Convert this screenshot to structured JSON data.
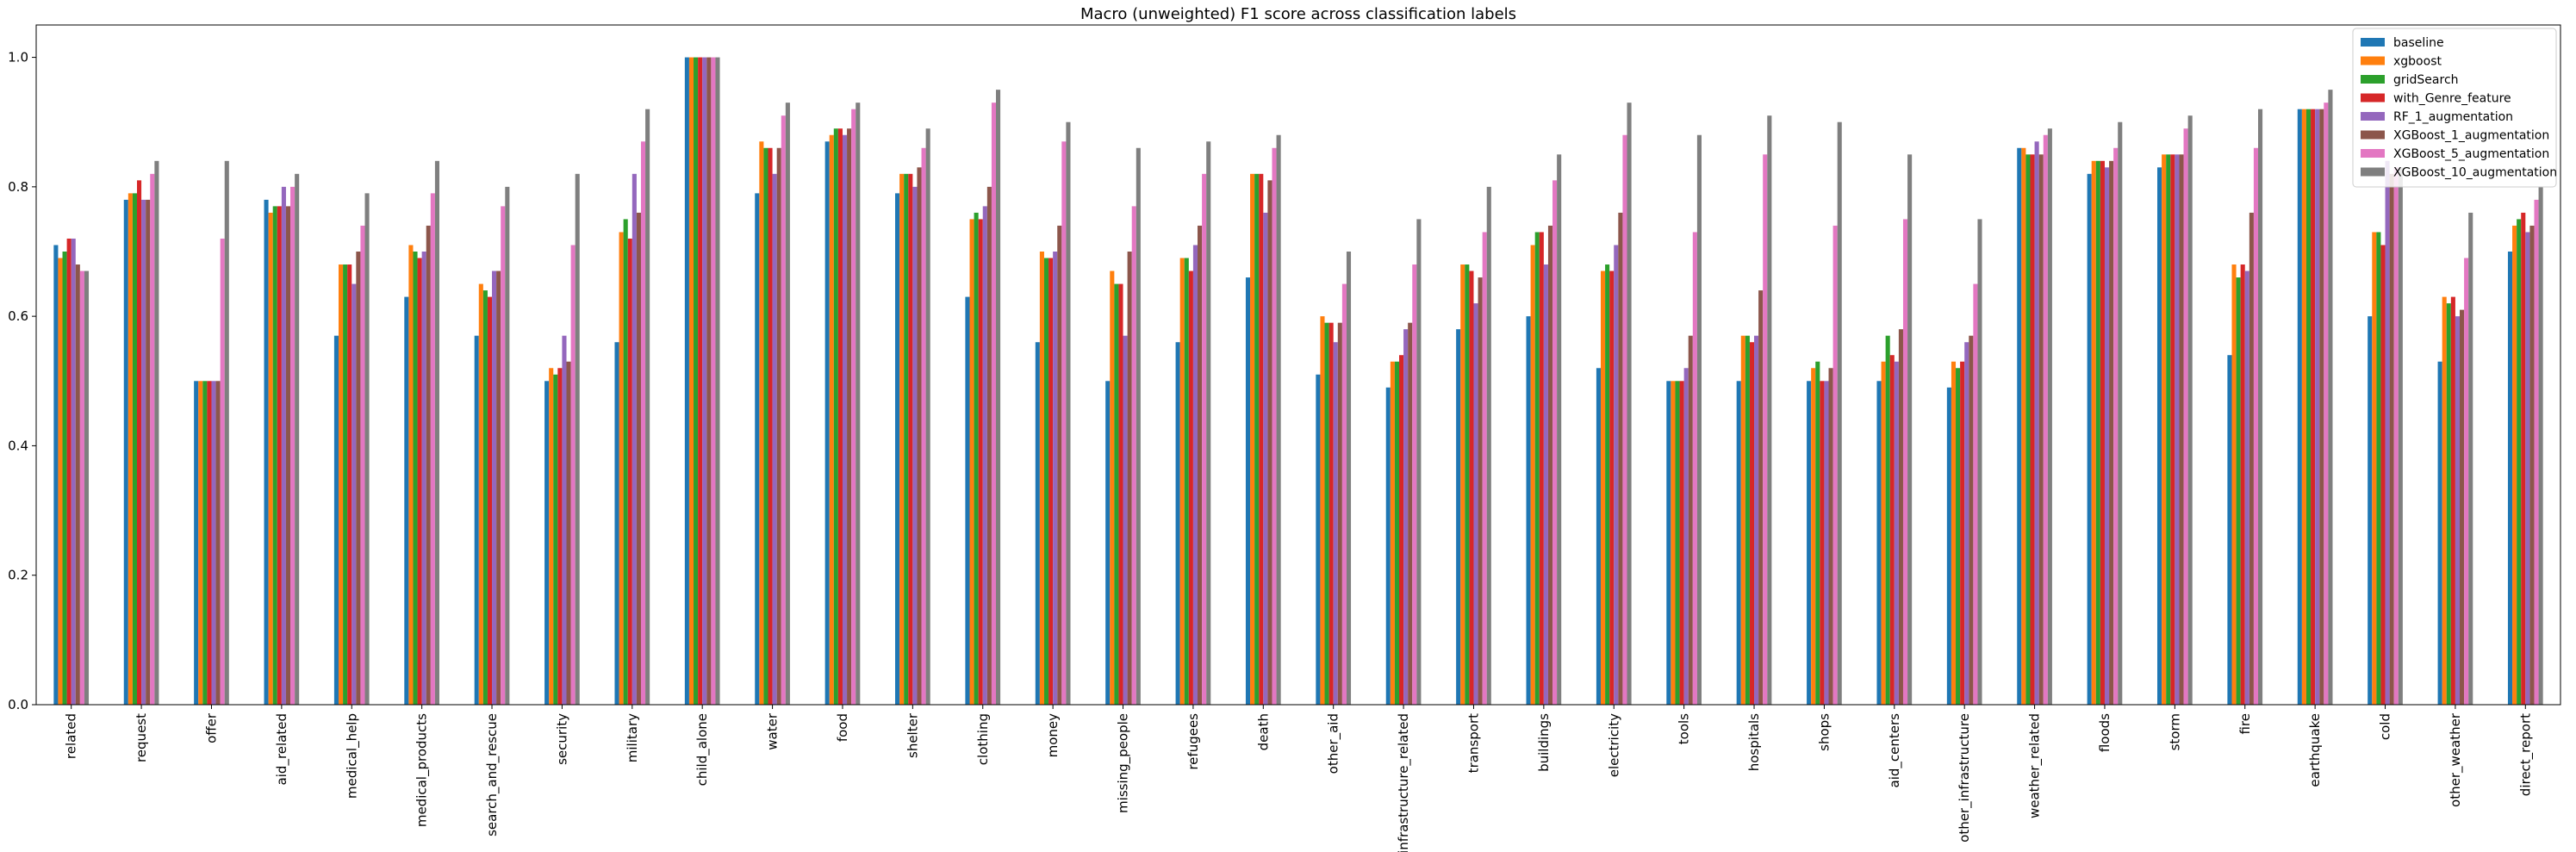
{
  "chart_data": {
    "type": "bar",
    "title": "Macro (unweighted) F1 score across classification labels",
    "xlabel": "",
    "ylabel": "",
    "ylim": [
      0,
      1.05
    ],
    "yticks": [
      0.0,
      0.2,
      0.4,
      0.6,
      0.8,
      1.0
    ],
    "ytick_labels": [
      "0.0",
      "0.2",
      "0.4",
      "0.6",
      "0.8",
      "1.0"
    ],
    "grid": false,
    "legend_position": "top-right",
    "categories": [
      "related",
      "request",
      "offer",
      "aid_related",
      "medical_help",
      "medical_products",
      "search_and_rescue",
      "security",
      "military",
      "child_alone",
      "water",
      "food",
      "shelter",
      "clothing",
      "money",
      "missing_people",
      "refugees",
      "death",
      "other_aid",
      "infrastructure_related",
      "transport",
      "buildings",
      "electricity",
      "tools",
      "hospitals",
      "shops",
      "aid_centers",
      "other_infrastructure",
      "weather_related",
      "floods",
      "storm",
      "fire",
      "earthquake",
      "cold",
      "other_weather",
      "direct_report"
    ],
    "series": [
      {
        "name": "baseline",
        "color": "#1f77b4",
        "values": [
          0.71,
          0.78,
          0.5,
          0.78,
          0.57,
          0.63,
          0.57,
          0.5,
          0.56,
          1.0,
          0.79,
          0.87,
          0.79,
          0.63,
          0.56,
          0.5,
          0.56,
          0.66,
          0.51,
          0.49,
          0.58,
          0.6,
          0.52,
          0.5,
          0.5,
          0.5,
          0.5,
          0.49,
          0.86,
          0.82,
          0.83,
          0.54,
          0.92,
          0.6,
          0.53,
          0.7
        ]
      },
      {
        "name": "xgboost",
        "color": "#ff7f0e",
        "values": [
          0.69,
          0.79,
          0.5,
          0.76,
          0.68,
          0.71,
          0.65,
          0.52,
          0.73,
          1.0,
          0.87,
          0.88,
          0.82,
          0.75,
          0.7,
          0.67,
          0.69,
          0.82,
          0.6,
          0.53,
          0.68,
          0.71,
          0.67,
          0.5,
          0.57,
          0.52,
          0.53,
          0.53,
          0.86,
          0.84,
          0.85,
          0.68,
          0.92,
          0.73,
          0.63,
          0.74
        ]
      },
      {
        "name": "gridSearch",
        "color": "#2ca02c",
        "values": [
          0.7,
          0.79,
          0.5,
          0.77,
          0.68,
          0.7,
          0.64,
          0.51,
          0.75,
          1.0,
          0.86,
          0.89,
          0.82,
          0.76,
          0.69,
          0.65,
          0.69,
          0.82,
          0.59,
          0.53,
          0.68,
          0.73,
          0.68,
          0.5,
          0.57,
          0.53,
          0.57,
          0.52,
          0.85,
          0.84,
          0.85,
          0.66,
          0.92,
          0.73,
          0.62,
          0.75
        ]
      },
      {
        "name": "with_Genre_feature",
        "color": "#d62728",
        "values": [
          0.72,
          0.81,
          0.5,
          0.77,
          0.68,
          0.69,
          0.63,
          0.52,
          0.72,
          1.0,
          0.86,
          0.89,
          0.82,
          0.75,
          0.69,
          0.65,
          0.67,
          0.82,
          0.59,
          0.54,
          0.67,
          0.73,
          0.67,
          0.5,
          0.56,
          0.5,
          0.54,
          0.53,
          0.85,
          0.84,
          0.85,
          0.68,
          0.92,
          0.71,
          0.63,
          0.76
        ]
      },
      {
        "name": "RF_1_augmentation",
        "color": "#9467bd",
        "values": [
          0.72,
          0.78,
          0.5,
          0.8,
          0.65,
          0.7,
          0.67,
          0.57,
          0.82,
          1.0,
          0.82,
          0.88,
          0.8,
          0.77,
          0.7,
          0.57,
          0.71,
          0.76,
          0.56,
          0.58,
          0.62,
          0.68,
          0.71,
          0.52,
          0.57,
          0.5,
          0.53,
          0.56,
          0.87,
          0.83,
          0.85,
          0.67,
          0.92,
          0.84,
          0.6,
          0.73
        ]
      },
      {
        "name": "XGBoost_1_augmentation",
        "color": "#8c564b",
        "values": [
          0.68,
          0.78,
          0.5,
          0.77,
          0.7,
          0.74,
          0.67,
          0.53,
          0.76,
          1.0,
          0.86,
          0.89,
          0.83,
          0.8,
          0.74,
          0.7,
          0.74,
          0.81,
          0.59,
          0.59,
          0.66,
          0.74,
          0.76,
          0.57,
          0.64,
          0.52,
          0.58,
          0.57,
          0.85,
          0.84,
          0.85,
          0.76,
          0.92,
          0.82,
          0.61,
          0.74
        ]
      },
      {
        "name": "XGBoost_5_augmentation",
        "color": "#e377c2",
        "values": [
          0.67,
          0.82,
          0.72,
          0.8,
          0.74,
          0.79,
          0.77,
          0.71,
          0.87,
          1.0,
          0.91,
          0.92,
          0.86,
          0.93,
          0.87,
          0.77,
          0.82,
          0.86,
          0.65,
          0.68,
          0.73,
          0.81,
          0.88,
          0.73,
          0.85,
          0.74,
          0.75,
          0.65,
          0.88,
          0.86,
          0.89,
          0.86,
          0.93,
          0.83,
          0.69,
          0.78
        ]
      },
      {
        "name": "XGBoost_10_augmentation",
        "color": "#7f7f7f",
        "values": [
          0.67,
          0.84,
          0.84,
          0.82,
          0.79,
          0.84,
          0.8,
          0.82,
          0.92,
          1.0,
          0.93,
          0.93,
          0.89,
          0.95,
          0.9,
          0.86,
          0.87,
          0.88,
          0.7,
          0.75,
          0.8,
          0.85,
          0.93,
          0.88,
          0.91,
          0.9,
          0.85,
          0.75,
          0.89,
          0.9,
          0.91,
          0.92,
          0.95,
          0.83,
          0.76,
          0.8
        ]
      }
    ]
  }
}
